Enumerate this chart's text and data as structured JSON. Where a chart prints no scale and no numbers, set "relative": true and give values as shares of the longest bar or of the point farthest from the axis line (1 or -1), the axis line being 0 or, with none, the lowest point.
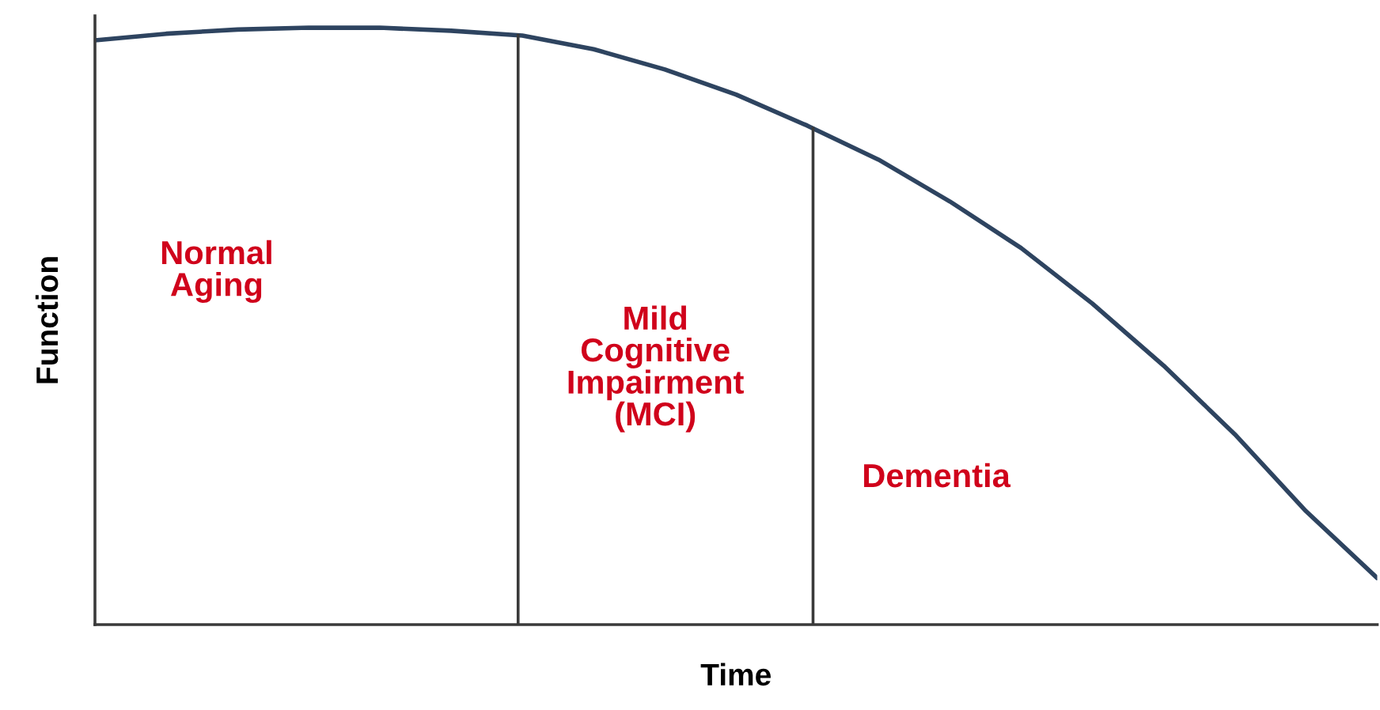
{
  "chart_data": {
    "type": "line",
    "relative": true,
    "xlabel": "Time",
    "ylabel": "Function",
    "categories": [
      null,
      null,
      null,
      null,
      null,
      null,
      null,
      null,
      null,
      null,
      null,
      null,
      null,
      null,
      null,
      null,
      null,
      null,
      null
    ],
    "series": [
      {
        "color": "#2e4460",
        "values": [
          0.979,
          0.99,
          0.997,
          1.0,
          1.0,
          0.995,
          0.987,
          0.964,
          0.93,
          0.888,
          0.836,
          0.779,
          0.709,
          0.631,
          0.538,
          0.434,
          0.319,
          0.19,
          0.078
        ]
      }
    ],
    "annotations": [
      "Normal\nAging",
      "Mild\nCognitive\nImpairment\n(MCI)",
      "Dementia"
    ]
  }
}
